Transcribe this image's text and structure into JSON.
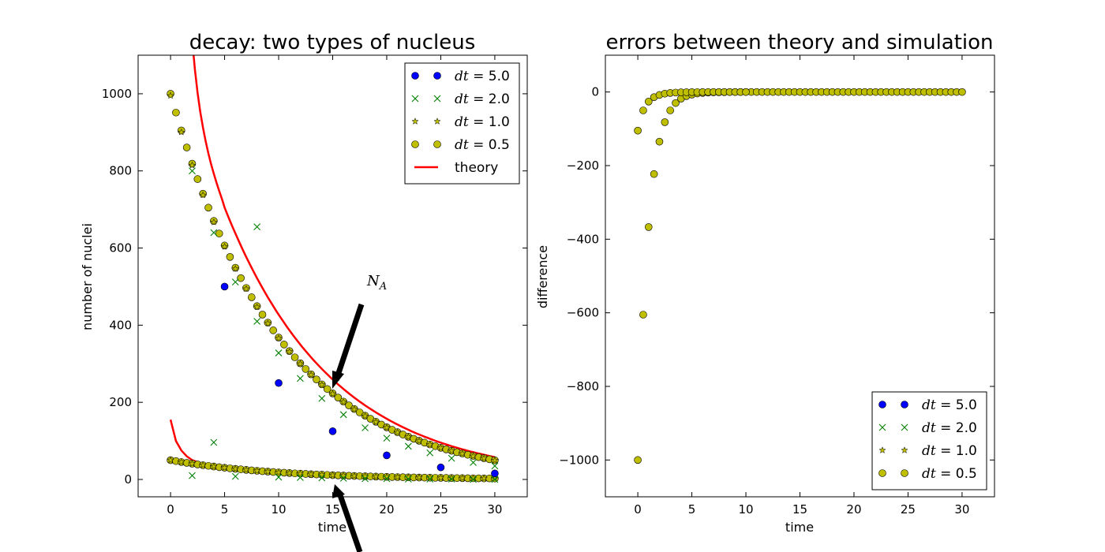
{
  "chart_data": [
    {
      "type": "scatter",
      "title": "decay: two types of nucleus",
      "xlabel": "time",
      "ylabel": "number of nuclei",
      "xlim": [
        -3,
        33
      ],
      "ylim": [
        -45,
        1100
      ],
      "xticks": [
        0,
        5,
        10,
        15,
        20,
        25,
        30
      ],
      "yticks": [
        0,
        200,
        400,
        600,
        800,
        1000
      ],
      "xtick_labels": [
        "0",
        "5",
        "10",
        "15",
        "20",
        "25",
        "30"
      ],
      "ytick_labels": [
        "0",
        "200",
        "400",
        "600",
        "800",
        "1000"
      ],
      "grid": false,
      "legend_position": "upper right",
      "legend": [
        {
          "label_prefix": "dt",
          "label_value": "5.0",
          "marker": "circle",
          "color": "#0000ff"
        },
        {
          "label_prefix": "dt",
          "label_value": "2.0",
          "marker": "x",
          "color": "#008000"
        },
        {
          "label_prefix": "dt",
          "label_value": "1.0",
          "marker": "star",
          "color": "#bfbf00"
        },
        {
          "label_prefix": "dt",
          "label_value": "0.5",
          "marker": "circle",
          "color": "#bfbf00"
        },
        {
          "label": "theory",
          "marker": "line",
          "color": "#ff0000"
        }
      ],
      "annotations": [
        {
          "text_main": "N",
          "text_sub": "A",
          "x": 18.5,
          "y": 500
        }
      ],
      "series": [
        {
          "name": "dt=5.0",
          "dt": 5.0,
          "marker": "circle",
          "color": "#0000ff",
          "x": [
            5,
            10,
            15,
            20,
            25,
            30
          ],
          "y": [
            500,
            250,
            125,
            62.5,
            31.25,
            15.6
          ]
        },
        {
          "name": "dt=2.0",
          "dt": 2.0,
          "marker": "x",
          "color": "#008000",
          "x": [
            2,
            4,
            6,
            8,
            10,
            12,
            14,
            16,
            18,
            20,
            22,
            24,
            26,
            28,
            30
          ],
          "y_a": [
            800,
            640,
            512,
            410,
            328,
            262,
            210,
            168,
            134,
            107,
            86,
            69,
            55,
            44,
            35
          ],
          "y_b": [
            10,
            96,
            8,
            655,
            6,
            5,
            4,
            3,
            2,
            2,
            1,
            1,
            1,
            0,
            0
          ]
        },
        {
          "name": "dt=1.0",
          "dt": 1.0,
          "marker": "star",
          "color": "#bfbf00",
          "x_start": 0,
          "x_end": 30,
          "step": 1
        },
        {
          "name": "dt=0.5",
          "dt": 0.5,
          "marker": "circle",
          "color": "#bfbf00",
          "x_start": 0,
          "x_end": 30,
          "step": 0.5,
          "N_A0": 1000,
          "tau_A": 10,
          "N_B0": 50,
          "tau_B": 10
        },
        {
          "name": "theory",
          "marker": "line",
          "color": "#ff0000",
          "x_start": 0,
          "x_end": 30,
          "step": 0.5,
          "N_A0": 1000,
          "tau_A": 10,
          "N_B0": 50,
          "tau_B": 10,
          "B_initial": [
            155,
            100,
            75,
            60,
            50,
            45
          ]
        }
      ]
    },
    {
      "type": "scatter",
      "title": "errors between theory and simulation",
      "xlabel": "time",
      "ylabel": "difference",
      "xlim": [
        -3,
        33
      ],
      "ylim": [
        -1100,
        100
      ],
      "xticks": [
        0,
        5,
        10,
        15,
        20,
        25,
        30
      ],
      "yticks": [
        0,
        -200,
        -400,
        -600,
        -800,
        -1000
      ],
      "xtick_labels": [
        "0",
        "5",
        "10",
        "15",
        "20",
        "25",
        "30"
      ],
      "ytick_labels": [
        "0",
        "−200",
        "−400",
        "−600",
        "−800",
        "−1000"
      ],
      "grid": false,
      "legend_position": "lower right",
      "legend": [
        {
          "label_prefix": "dt",
          "label_value": "5.0",
          "marker": "circle",
          "color": "#0000ff"
        },
        {
          "label_prefix": "dt",
          "label_value": "2.0",
          "marker": "x",
          "color": "#008000"
        },
        {
          "label_prefix": "dt",
          "label_value": "1.0",
          "marker": "star",
          "color": "#bfbf00"
        },
        {
          "label_prefix": "dt",
          "label_value": "0.5",
          "marker": "circle",
          "color": "#bfbf00"
        }
      ],
      "series": [
        {
          "name": "dt=0.5",
          "marker": "circle",
          "color": "#bfbf00",
          "x": [
            0,
            0.5,
            1,
            1.5,
            2,
            2.5,
            3,
            3.5,
            4,
            4.5,
            5,
            5.5,
            6,
            6.5,
            7,
            7.5,
            8,
            8.5,
            9,
            9.5,
            10,
            10.5,
            11,
            11.5,
            12,
            12.5,
            13,
            13.5,
            14,
            14.5,
            15,
            15.5,
            16,
            16.5,
            17,
            17.5,
            18,
            18.5,
            19,
            19.5,
            20,
            20.5,
            21,
            21.5,
            22,
            22.5,
            23,
            23.5,
            24,
            24.5,
            25,
            25.5,
            26,
            26.5,
            27,
            27.5,
            28,
            28.5,
            29,
            29.5,
            30
          ],
          "y": [
            -1000,
            -605,
            -367,
            -223,
            -135,
            -82,
            -50,
            -30,
            -18,
            -11,
            -7,
            -4,
            -2.5,
            -1.5,
            -0.9,
            -0.6,
            -0.3,
            -0.2,
            -0.1,
            -0.1,
            0,
            0,
            0,
            0,
            0,
            0,
            0,
            0,
            0,
            0,
            0,
            0,
            0,
            0,
            0,
            0,
            0,
            0,
            0,
            0,
            0,
            0,
            0,
            0,
            0,
            0,
            0,
            0,
            0,
            0,
            0,
            0,
            0,
            0,
            0,
            0,
            0,
            0,
            0,
            0,
            0
          ]
        },
        {
          "name": "dt=0.5 (B)",
          "marker": "circle",
          "color": "#bfbf00",
          "x": [
            0,
            0.5,
            1,
            1.5,
            2,
            2.5,
            3,
            3.5,
            4,
            4.5,
            5,
            5.5,
            6,
            6.5,
            7,
            7.5,
            8,
            8.5,
            9,
            9.5,
            10
          ],
          "y": [
            -105,
            -50,
            -26,
            -14,
            -8,
            -4.5,
            -2.5,
            -1.5,
            -0.8,
            -0.5,
            -0.3,
            -0.2,
            -0.1,
            -0.1,
            0,
            0,
            0,
            0,
            0,
            0,
            0
          ]
        }
      ]
    }
  ]
}
